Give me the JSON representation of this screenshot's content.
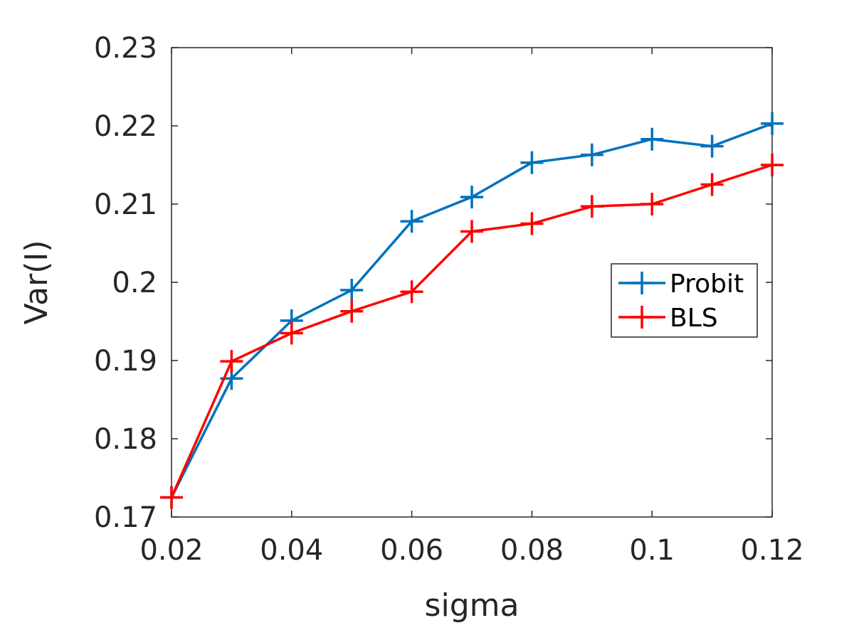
{
  "chart_data": {
    "type": "line",
    "title": "",
    "xlabel": "sigma",
    "ylabel": "Var(I)",
    "xlim": [
      0.02,
      0.12
    ],
    "ylim": [
      0.17,
      0.23
    ],
    "x_ticks": [
      "0.02",
      "0.04",
      "0.06",
      "0.08",
      "0.1",
      "0.12"
    ],
    "y_ticks": [
      "0.17",
      "0.18",
      "0.19",
      "0.2",
      "0.21",
      "0.22",
      "0.23"
    ],
    "x_tick_values": [
      0.02,
      0.04,
      0.06,
      0.08,
      0.1,
      0.12
    ],
    "y_tick_values": [
      0.17,
      0.18,
      0.19,
      0.2,
      0.21,
      0.22,
      0.23
    ],
    "grid": false,
    "legend_position": "right",
    "x": [
      0.02,
      0.03,
      0.04,
      0.05,
      0.06,
      0.07,
      0.08,
      0.09,
      0.1,
      0.11,
      0.12
    ],
    "series": [
      {
        "name": "Probit",
        "color": "#0072bd",
        "marker": "plus",
        "values": [
          0.1725,
          0.1877,
          0.1951,
          0.199,
          0.2078,
          0.2109,
          0.2153,
          0.2163,
          0.2183,
          0.2174,
          0.2203
        ]
      },
      {
        "name": "BLS",
        "color": "#ff0000",
        "marker": "plus",
        "values": [
          0.1725,
          0.1899,
          0.1935,
          0.1963,
          0.1988,
          0.2065,
          0.2075,
          0.2097,
          0.21,
          0.2125,
          0.215
        ]
      }
    ]
  }
}
